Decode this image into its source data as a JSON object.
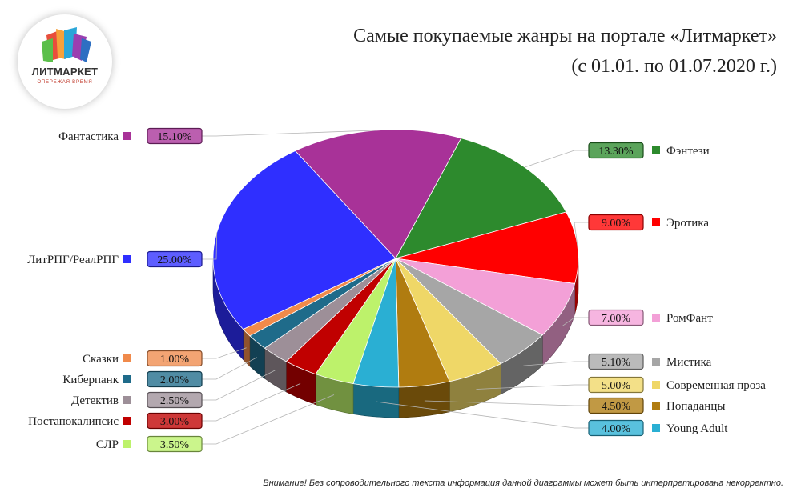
{
  "logo": {
    "name": "ЛИТМАРКЕТ",
    "tagline": "ОПЕРЕЖАЯ ВРЕМЯ"
  },
  "chart_data": {
    "type": "pie",
    "title": "Самые покупаемые жанры на портале «Литмаркет»",
    "subtitle": "(с 01.01. по 01.07.2020 г.)",
    "slices": [
      {
        "label": "Фэнтези",
        "value": 13.3,
        "display": "13.30%",
        "color": "#2d8a2d"
      },
      {
        "label": "Эротика",
        "value": 9.0,
        "display": "9.00%",
        "color": "#ff0000"
      },
      {
        "label": "РомФант",
        "value": 7.0,
        "display": "7.00%",
        "color": "#f3a0d7"
      },
      {
        "label": "Мистика",
        "value": 5.1,
        "display": "5.10%",
        "color": "#a6a6a6"
      },
      {
        "label": "Современная проза",
        "value": 5.0,
        "display": "5.00%",
        "color": "#efd767"
      },
      {
        "label": "Попаданцы",
        "value": 4.5,
        "display": "4.50%",
        "color": "#b07c10"
      },
      {
        "label": "Young Adult",
        "value": 4.0,
        "display": "4.00%",
        "color": "#2aafd3"
      },
      {
        "label": "СЛР",
        "value": 3.5,
        "display": "3.50%",
        "color": "#bdf26b"
      },
      {
        "label": "Постапокалипсис",
        "value": 3.0,
        "display": "3.00%",
        "color": "#c00000"
      },
      {
        "label": "Детектив",
        "value": 2.5,
        "display": "2.50%",
        "color": "#9d8f98"
      },
      {
        "label": "Киберпанк",
        "value": 2.0,
        "display": "2.00%",
        "color": "#1f6b8a"
      },
      {
        "label": "Сказки",
        "value": 1.0,
        "display": "1.00%",
        "color": "#f08a4b"
      },
      {
        "label": "ЛитРПГ/РеалРПГ",
        "value": 25.0,
        "display": "25.00%",
        "color": "#2f2fff"
      },
      {
        "label": "Фантастика",
        "value": 15.1,
        "display": "15.10%",
        "color": "#a83298"
      }
    ],
    "legend": "left-and-right"
  },
  "footnote": "Внимание! Без сопроводительного текста информация данной диаграммы может быть интерпретирована некорректно."
}
